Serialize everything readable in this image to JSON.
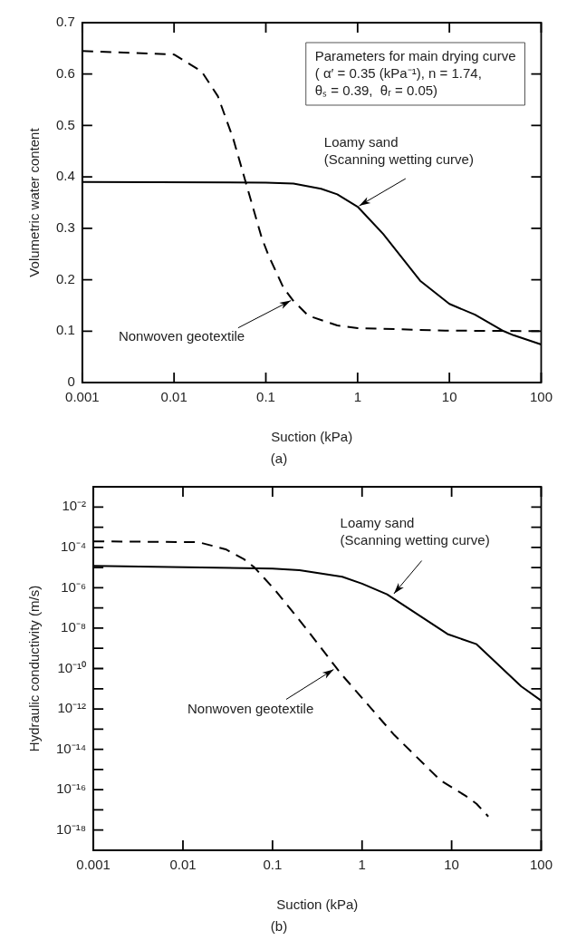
{
  "chart_data": [
    {
      "type": "line",
      "subtitle": "(a)",
      "xlabel": "Suction (kPa)",
      "ylabel": "Volumetric water content",
      "log": "x",
      "marker": "none",
      "xlim": [
        0.001,
        100
      ],
      "xticks": [
        0.001,
        0.01,
        0.1,
        1,
        10,
        100
      ],
      "ylim": [
        0,
        0.7
      ],
      "yticks": [
        0,
        0.1,
        0.2,
        0.3,
        0.4,
        0.5,
        0.6,
        0.7
      ],
      "series": [
        {
          "color": "#000000",
          "line_style": "solid",
          "x": [
            0.001,
            0.1,
            0.2,
            0.4,
            0.6,
            1,
            1.9,
            4.8,
            10,
            19,
            39,
            50,
            100
          ],
          "values": [
            0.39,
            0.389,
            0.387,
            0.377,
            0.366,
            0.342,
            0.289,
            0.198,
            0.153,
            0.132,
            0.1,
            0.092,
            0.074
          ]
        },
        {
          "color": "#000000",
          "line_style": "dashed",
          "x": [
            0.001,
            0.01,
            0.02,
            0.03,
            0.044,
            0.063,
            0.09,
            0.107,
            0.155,
            0.195,
            0.29,
            0.6,
            1,
            9,
            100
          ],
          "values": [
            0.645,
            0.638,
            0.605,
            0.557,
            0.475,
            0.378,
            0.282,
            0.247,
            0.185,
            0.161,
            0.13,
            0.111,
            0.106,
            0.101,
            0.1
          ]
        }
      ],
      "annotations": [
        "Parameters for main drying curve\n( α′ = 0.35 (kPa⁻¹), n = 1.74,\nθₛ = 0.39,  θᵣ = 0.05)",
        {
          "text": "Loamy sand\n(Scanning wetting curve)",
          "x": 1,
          "y": 0.342
        },
        {
          "text": "Nonwoven geotextile",
          "x": 0.195,
          "y": 0.161
        }
      ]
    },
    {
      "type": "line",
      "subtitle": "(b)",
      "xlabel": "Suction (kPa)",
      "ylabel": "Hydraulic conductivity (m/s)",
      "log": "xy",
      "marker": "none",
      "xlim": [
        0.001,
        100
      ],
      "xticks": [
        0.001,
        0.01,
        0.1,
        1,
        10,
        100
      ],
      "ylim": [
        1e-19,
        0.1
      ],
      "yticks": [
        {
          "value": 0.01,
          "label": "10⁻²"
        },
        {
          "value": 0.001,
          "label": null
        },
        {
          "value": 0.0001,
          "label": "10⁻⁴"
        },
        {
          "value": 1e-05,
          "label": null
        },
        {
          "value": 1e-06,
          "label": "10⁻⁶"
        },
        {
          "value": 1e-07,
          "label": null
        },
        {
          "value": 1e-08,
          "label": "10⁻⁸"
        },
        {
          "value": 1e-09,
          "label": null
        },
        {
          "value": 1e-10,
          "label": "10⁻¹⁰"
        },
        {
          "value": 1e-11,
          "label": null
        },
        {
          "value": 1e-12,
          "label": "10⁻¹²"
        },
        {
          "value": 1e-13,
          "label": null
        },
        {
          "value": 1e-14,
          "label": "10⁻¹⁴"
        },
        {
          "value": 1e-15,
          "label": null
        },
        {
          "value": 1e-16,
          "label": "10⁻¹⁶"
        },
        {
          "value": 1e-17,
          "label": null
        },
        {
          "value": 1e-18,
          "label": "10⁻¹⁸"
        }
      ],
      "series": [
        {
          "color": "#000000",
          "line_style": "solid",
          "x": [
            0.001,
            0.1,
            0.2,
            0.6,
            1,
            1.9,
            9,
            19,
            60,
            100
          ],
          "values": [
            1.2e-05,
            9e-06,
            7.4e-06,
            3.5e-06,
            1.6e-06,
            4.7e-07,
            5.1e-09,
            1.6e-09,
            1.3e-11,
            2.6e-12
          ]
        },
        {
          "color": "#000000",
          "line_style": "dashed",
          "x": [
            0.001,
            0.015,
            0.03,
            0.048,
            0.063,
            0.107,
            0.24,
            0.5,
            0.6,
            2.3,
            7.5,
            14.3,
            19,
            25.7
          ],
          "values": [
            0.0002,
            0.00018,
            8e-05,
            2.6e-05,
            1e-05,
            7.6e-07,
            9e-09,
            1.3e-10,
            4.7e-11,
            5e-14,
            2.9e-16,
            5e-17,
            2e-17,
            4.7e-18
          ]
        }
      ],
      "annotations": [
        {
          "text": "Loamy sand\n(Scanning wetting curve)",
          "x": 2.2,
          "y": 4.3e-07
        },
        {
          "text": "Nonwoven geotextile",
          "x": 0.5,
          "y": 1e-10
        }
      ]
    }
  ]
}
